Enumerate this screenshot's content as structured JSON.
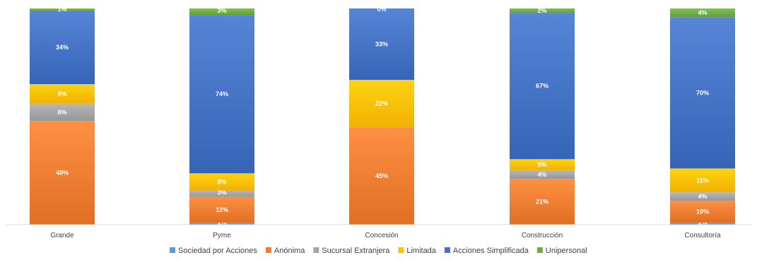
{
  "chart_data": {
    "type": "bar",
    "stacked": true,
    "percent_stacked": true,
    "categories": [
      "Grande",
      "Pyme",
      "Concesión",
      "Construcción",
      "Consultoría"
    ],
    "series": [
      {
        "name": "Sociedad por Acciones",
        "color": "#5b9bd5",
        "values": [
          0,
          1,
          0,
          0,
          1
        ],
        "labels": [
          "0%",
          "1%",
          "0%",
          "0%",
          "1%"
        ]
      },
      {
        "name": "Anónima",
        "color": "#ed7d31",
        "values": [
          48,
          12,
          45,
          21,
          10
        ],
        "labels": [
          "48%",
          "12%",
          "45%",
          "21%",
          "10%"
        ]
      },
      {
        "name": "Sucursal Extranjera",
        "color": "#a5a5a5",
        "values": [
          8,
          3,
          0,
          4,
          4
        ],
        "labels": [
          "8%",
          "3%",
          "0%",
          "4%",
          "4%"
        ]
      },
      {
        "name": "Limitada",
        "color": "#ffc000",
        "values": [
          9,
          8,
          22,
          5,
          11
        ],
        "labels": [
          "9%",
          "8%",
          "22%",
          "5%",
          "11%"
        ]
      },
      {
        "name": "Acciones Simplificada",
        "color": "#4472c4",
        "values": [
          34,
          74,
          33,
          67,
          70
        ],
        "labels": [
          "34%",
          "74%",
          "33%",
          "67%",
          "70%"
        ]
      },
      {
        "name": "Unipersonal",
        "color": "#70ad47",
        "values": [
          1,
          3,
          0,
          2,
          4
        ],
        "labels": [
          "1%",
          "3%",
          "0%",
          "2%",
          "4%"
        ]
      }
    ],
    "ylim": [
      0,
      100
    ],
    "grid": false,
    "legend_position": "bottom"
  }
}
